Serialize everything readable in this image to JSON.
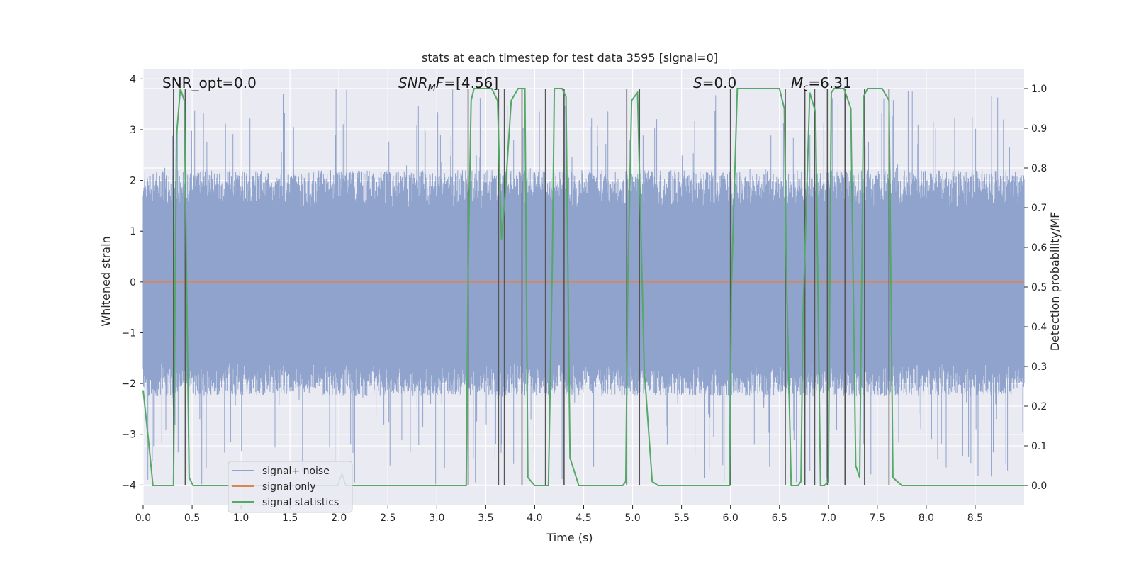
{
  "chart_data": {
    "type": "line",
    "title": "stats at each timestep for test data 3595 [signal=0]",
    "xlabel": "Time (s)",
    "ylabel_left": "Whitened strain",
    "ylabel_right": "Detection probability/MF",
    "xlim": [
      0,
      9.0
    ],
    "ylim_left": [
      -4.4,
      4.2
    ],
    "ylim_right": [
      -0.05,
      1.05
    ],
    "x_ticks": [
      0.0,
      0.5,
      1.0,
      1.5,
      2.0,
      2.5,
      3.0,
      3.5,
      4.0,
      4.5,
      5.0,
      5.5,
      6.0,
      6.5,
      7.0,
      7.5,
      8.0,
      8.5
    ],
    "x_tick_labels": [
      "0.0",
      "0.5",
      "1.0",
      "1.5",
      "2.0",
      "2.5",
      "3.0",
      "3.5",
      "4.0",
      "4.5",
      "5.0",
      "5.5",
      "6.0",
      "6.5",
      "7.0",
      "7.5",
      "8.0",
      "8.5"
    ],
    "y_left_ticks": [
      -4,
      -3,
      -2,
      -1,
      0,
      1,
      2,
      3,
      4
    ],
    "y_left_tick_labels": [
      "−4",
      "−3",
      "−2",
      "−1",
      "0",
      "1",
      "2",
      "3",
      "4"
    ],
    "y_right_ticks": [
      0.0,
      0.1,
      0.2,
      0.3,
      0.4,
      0.5,
      0.6,
      0.7,
      0.8,
      0.9,
      1.0
    ],
    "y_right_tick_labels": [
      "0.0",
      "0.1",
      "0.2",
      "0.3",
      "0.4",
      "0.5",
      "0.6",
      "0.7",
      "0.8",
      "0.9",
      "1.0"
    ],
    "grid": true,
    "legend_placement": "lower-left",
    "annotations": {
      "snr_opt": "SNR_opt=0.0",
      "snr_mf": "=[4.56]",
      "s_stat": "=0.0",
      "mc": "=6.31"
    },
    "series": [
      {
        "name": "signal+ noise",
        "color": "#8fa3cc",
        "axis": "left",
        "description_values": "dense noise, mostly within [-1.8, 2.0], spikes to about 3.8 and -4.0",
        "envelope": {
          "core": [
            -1.6,
            1.45
          ],
          "peak_max": 3.8,
          "peak_min": -4.0
        }
      },
      {
        "name": "signal only",
        "color": "#dd8452",
        "axis": "left",
        "x": [
          0.0,
          9.0
        ],
        "y": [
          0.0,
          0.0
        ]
      },
      {
        "name": "signal statistics",
        "color": "#55a868",
        "axis": "right",
        "x": [
          0.0,
          0.06,
          0.1,
          0.25,
          0.31,
          0.34,
          0.38,
          0.42,
          0.47,
          0.51,
          1.0,
          1.5,
          1.99,
          2.0,
          2.03,
          2.07,
          2.5,
          3.0,
          3.3,
          3.32,
          3.35,
          3.38,
          3.56,
          3.62,
          3.66,
          3.7,
          3.76,
          3.83,
          3.9,
          3.93,
          4.0,
          4.07,
          4.14,
          4.18,
          4.2,
          4.28,
          4.32,
          4.36,
          4.45,
          4.6,
          4.9,
          4.93,
          4.95,
          4.99,
          5.05,
          5.12,
          5.2,
          5.26,
          5.5,
          5.8,
          5.99,
          6.01,
          6.07,
          6.3,
          6.5,
          6.55,
          6.57,
          6.62,
          6.66,
          6.69,
          6.72,
          6.74,
          6.81,
          6.87,
          6.92,
          6.96,
          7.0,
          7.03,
          7.06,
          7.1,
          7.16,
          7.23,
          7.28,
          7.32,
          7.36,
          7.4,
          7.45,
          7.55,
          7.62,
          7.66,
          7.75,
          8.0,
          8.5,
          9.0
        ],
        "y": [
          0.24,
          0.1,
          0.0,
          0.0,
          0.0,
          0.88,
          1.0,
          0.97,
          0.02,
          0.0,
          0.0,
          0.0,
          0.0,
          0.01,
          0.03,
          0.0,
          0.0,
          0.0,
          0.0,
          0.54,
          0.97,
          1.0,
          1.0,
          0.97,
          0.62,
          0.74,
          0.97,
          1.0,
          1.0,
          0.02,
          0.0,
          0.0,
          0.0,
          0.56,
          1.0,
          1.0,
          0.98,
          0.07,
          0.0,
          0.0,
          0.0,
          0.01,
          0.5,
          0.97,
          0.99,
          0.29,
          0.01,
          0.0,
          0.0,
          0.0,
          0.0,
          0.5,
          1.0,
          1.0,
          1.0,
          0.95,
          0.55,
          0.0,
          0.0,
          0.0,
          0.01,
          0.42,
          0.99,
          0.94,
          0.0,
          0.0,
          0.01,
          0.99,
          1.0,
          1.0,
          1.0,
          0.95,
          0.05,
          0.02,
          0.98,
          1.0,
          1.0,
          1.0,
          0.97,
          0.02,
          0.0,
          0.0,
          0.0,
          0.0
        ]
      }
    ],
    "vertical_markers_x": [
      0.31,
      0.43,
      3.32,
      3.63,
      3.69,
      3.87,
      4.11,
      4.3,
      4.94,
      5.07,
      6.0,
      6.56,
      6.76,
      6.86,
      6.99,
      7.17,
      7.37,
      7.62
    ],
    "marker_color": "#555555"
  }
}
